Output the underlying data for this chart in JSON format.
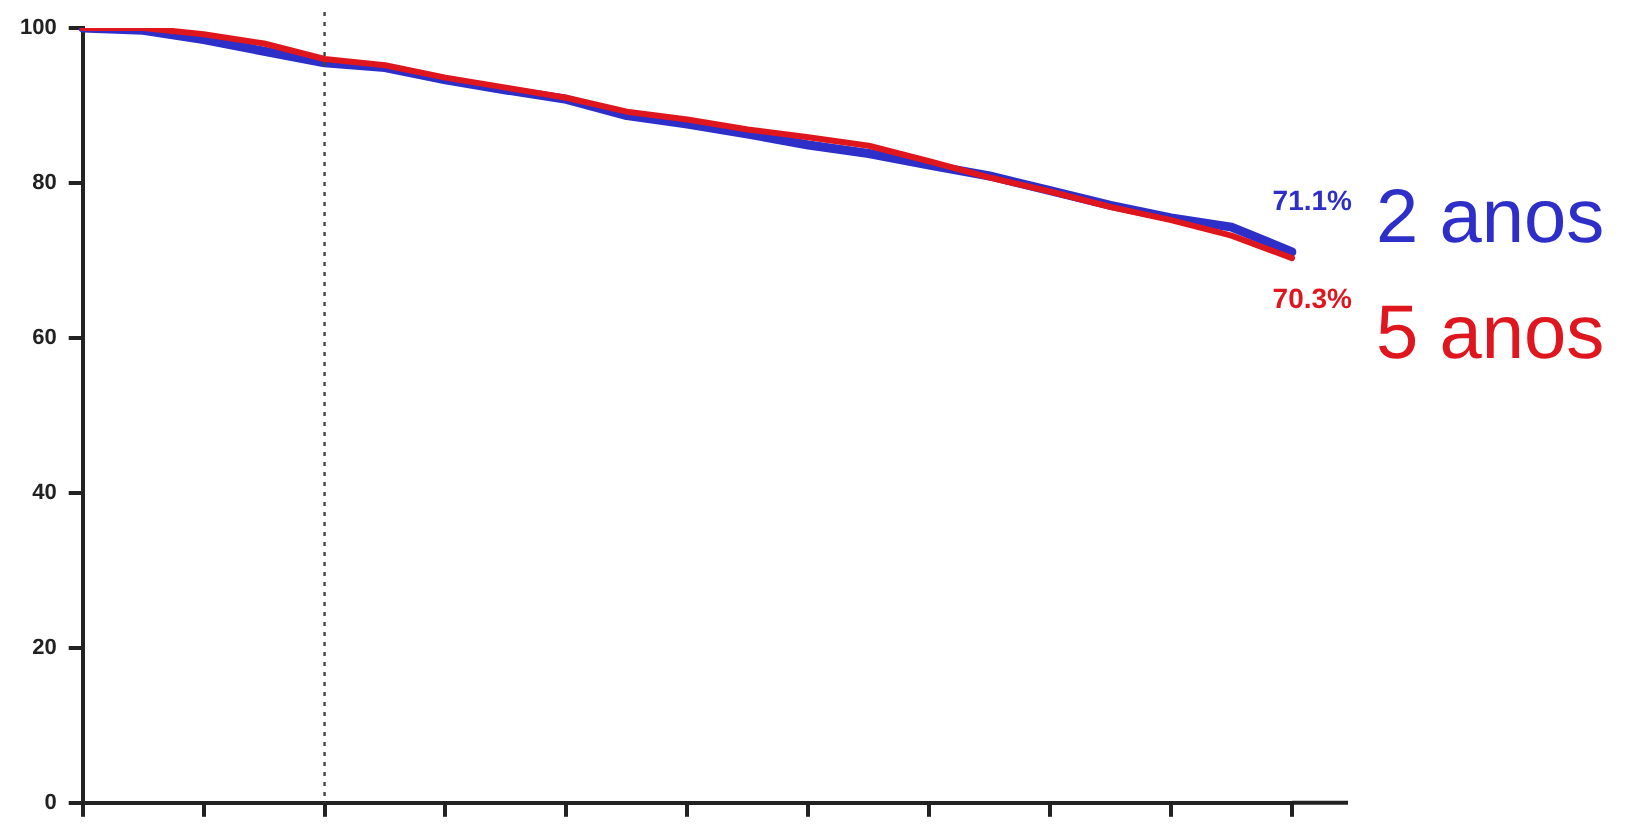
{
  "chart_data": {
    "type": "line",
    "categories": [
      null,
      null,
      null,
      null,
      null,
      null,
      null,
      null,
      null,
      null,
      null,
      null,
      null,
      null,
      null,
      null,
      null,
      null,
      null,
      null,
      null
    ],
    "series": [
      {
        "name": "2 anos",
        "color": "#2e2ec8",
        "values": [
          100,
          99.7,
          98.5,
          97,
          95.5,
          94.9,
          93.3,
          92.0,
          90.8,
          88.7,
          87.6,
          86.3,
          84.9,
          83.8,
          82.3,
          80.9,
          79.0,
          77.1,
          75.5,
          74.3,
          71.1
        ],
        "value_labels": [
          null,
          null,
          null,
          null,
          null,
          null,
          null,
          null,
          null,
          null,
          null,
          null,
          null,
          null,
          null,
          null,
          null,
          null,
          null,
          null,
          "71.1%"
        ]
      },
      {
        "name": "5 anos",
        "color": "#e0161e",
        "values": [
          100,
          100,
          99.2,
          98,
          96,
          95.2,
          93.6,
          92.3,
          91.0,
          89.2,
          88.2,
          86.9,
          85.9,
          84.8,
          82.8,
          80.7,
          78.9,
          76.9,
          75.2,
          73.2,
          70.3
        ],
        "value_labels": [
          null,
          null,
          null,
          null,
          null,
          null,
          null,
          null,
          null,
          null,
          null,
          null,
          null,
          null,
          null,
          null,
          null,
          null,
          null,
          null,
          "70.3%"
        ]
      }
    ],
    "ylim": [
      0,
      100
    ],
    "yticks": [
      0,
      20,
      40,
      60,
      80,
      100
    ],
    "grid": false,
    "marker": "none",
    "line_style": "solid",
    "tick_labels": "y"
  }
}
